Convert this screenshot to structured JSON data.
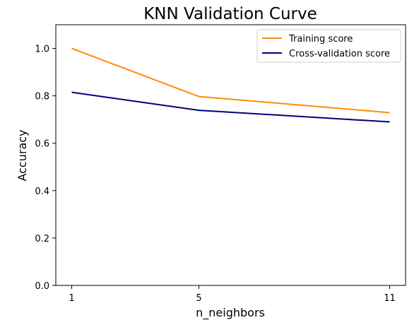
{
  "chart_data": {
    "type": "line",
    "title": "KNN Validation Curve",
    "xlabel": "n_neighbors",
    "ylabel": "Accuracy",
    "x": [
      1,
      5,
      11
    ],
    "xticks": [
      "1",
      "5",
      "11"
    ],
    "yticks": [
      "0.0",
      "0.2",
      "0.4",
      "0.6",
      "0.8",
      "1.0"
    ],
    "xlim": [
      0.5,
      11.5
    ],
    "ylim": [
      0.0,
      1.1
    ],
    "grid": false,
    "legend_position": "top-right",
    "series": [
      {
        "name": "Training score",
        "color": "#ff8c00",
        "values": [
          1.0,
          0.797,
          0.729
        ]
      },
      {
        "name": "Cross-validation score",
        "color": "#000080",
        "values": [
          0.815,
          0.739,
          0.69
        ]
      }
    ]
  }
}
